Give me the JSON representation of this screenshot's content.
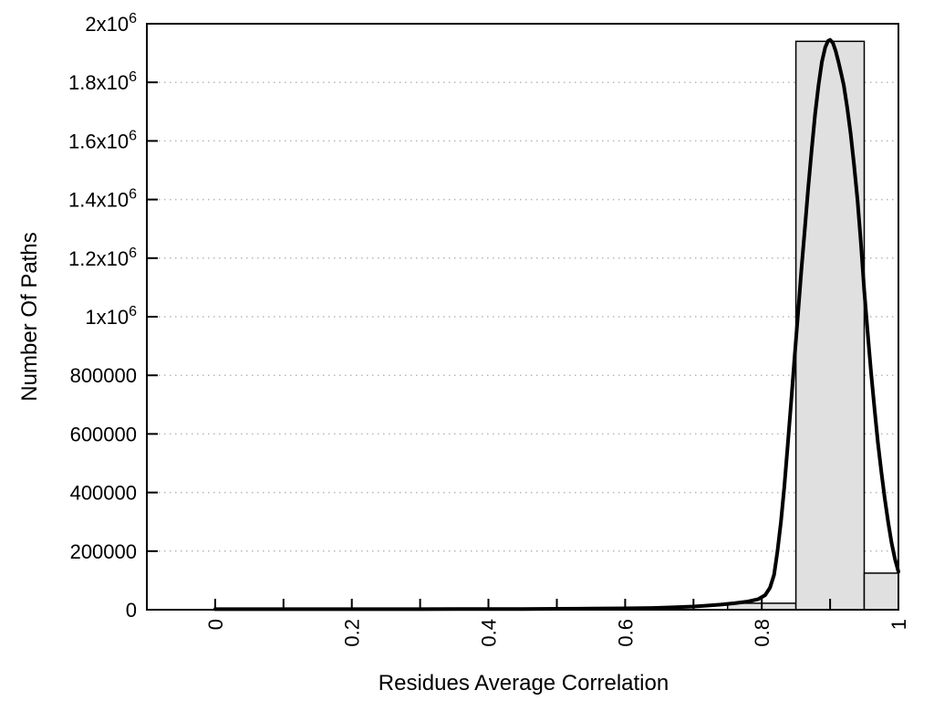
{
  "chart_data": {
    "type": "bar",
    "subtype": "histogram-with-density-curve",
    "title": "",
    "xlabel": "Residues Average Correlation",
    "ylabel": "Number Of Paths",
    "xlim": [
      -0.1,
      1.0
    ],
    "ylim": [
      0,
      2000000
    ],
    "grid": "horizontal-dotted-at-major-y-ticks",
    "legend_position": "none",
    "x_major_ticks": {
      "values": [
        0,
        0.2,
        0.4,
        0.6,
        0.8,
        1.0
      ],
      "labels": [
        "0",
        "0.2",
        "0.4",
        "0.6",
        "0.8",
        "1"
      ],
      "label_rotation_deg": -90
    },
    "x_minor_ticks": [
      0,
      0.1,
      0.2,
      0.3,
      0.4,
      0.5,
      0.6,
      0.7,
      0.8,
      0.9,
      1.0
    ],
    "y_ticks": {
      "values": [
        0,
        200000,
        400000,
        600000,
        800000,
        1000000,
        1200000,
        1400000,
        1600000,
        1800000,
        2000000
      ],
      "labels": [
        "0",
        "200000",
        "400000",
        "600000",
        "800000",
        "1x10^6",
        "1.2x10^6",
        "1.4x10^6",
        "1.6x10^6",
        "1.8x10^6",
        "2x10^6"
      ]
    },
    "bars": [
      {
        "from": 0.75,
        "to": 0.85,
        "count": 22000
      },
      {
        "from": 0.85,
        "to": 0.95,
        "count": 1940000
      },
      {
        "from": 0.95,
        "to": 1.0,
        "count": 125000
      }
    ],
    "curve_points": [
      [
        0.0,
        1800
      ],
      [
        0.05,
        1800
      ],
      [
        0.1,
        1800
      ],
      [
        0.15,
        1800
      ],
      [
        0.2,
        1800
      ],
      [
        0.25,
        1900
      ],
      [
        0.3,
        2000
      ],
      [
        0.35,
        2100
      ],
      [
        0.4,
        2300
      ],
      [
        0.45,
        2600
      ],
      [
        0.5,
        3000
      ],
      [
        0.55,
        3600
      ],
      [
        0.6,
        4600
      ],
      [
        0.64,
        6000
      ],
      [
        0.67,
        8000
      ],
      [
        0.7,
        11000
      ],
      [
        0.72,
        14000
      ],
      [
        0.74,
        17500
      ],
      [
        0.76,
        22000
      ],
      [
        0.78,
        28000
      ],
      [
        0.795,
        36000
      ],
      [
        0.805,
        50000
      ],
      [
        0.812,
        75000
      ],
      [
        0.818,
        120000
      ],
      [
        0.823,
        200000
      ],
      [
        0.828,
        300000
      ],
      [
        0.833,
        420000
      ],
      [
        0.838,
        560000
      ],
      [
        0.843,
        710000
      ],
      [
        0.848,
        860000
      ],
      [
        0.853,
        1010000
      ],
      [
        0.858,
        1160000
      ],
      [
        0.863,
        1300000
      ],
      [
        0.868,
        1440000
      ],
      [
        0.873,
        1570000
      ],
      [
        0.878,
        1690000
      ],
      [
        0.883,
        1790000
      ],
      [
        0.888,
        1870000
      ],
      [
        0.893,
        1920000
      ],
      [
        0.897,
        1941000
      ],
      [
        0.9,
        1945000
      ],
      [
        0.904,
        1935000
      ],
      [
        0.908,
        1908000
      ],
      [
        0.912,
        1872000
      ],
      [
        0.916,
        1832000
      ],
      [
        0.92,
        1790000
      ],
      [
        0.925,
        1715000
      ],
      [
        0.93,
        1625000
      ],
      [
        0.935,
        1520000
      ],
      [
        0.94,
        1400000
      ],
      [
        0.945,
        1255000
      ],
      [
        0.95,
        1090000
      ],
      [
        0.955,
        945000
      ],
      [
        0.96,
        810000
      ],
      [
        0.965,
        685000
      ],
      [
        0.97,
        570000
      ],
      [
        0.975,
        470000
      ],
      [
        0.98,
        380000
      ],
      [
        0.985,
        298000
      ],
      [
        0.99,
        228000
      ],
      [
        0.995,
        172000
      ],
      [
        1.0,
        130000
      ]
    ],
    "colors": {
      "background": "#ffffff",
      "axis": "#000000",
      "bar_fill": "#e0e0e0",
      "bar_border": "#000000",
      "curve": "#000000",
      "grid": "#b8b8b8",
      "text": "#000000"
    }
  }
}
